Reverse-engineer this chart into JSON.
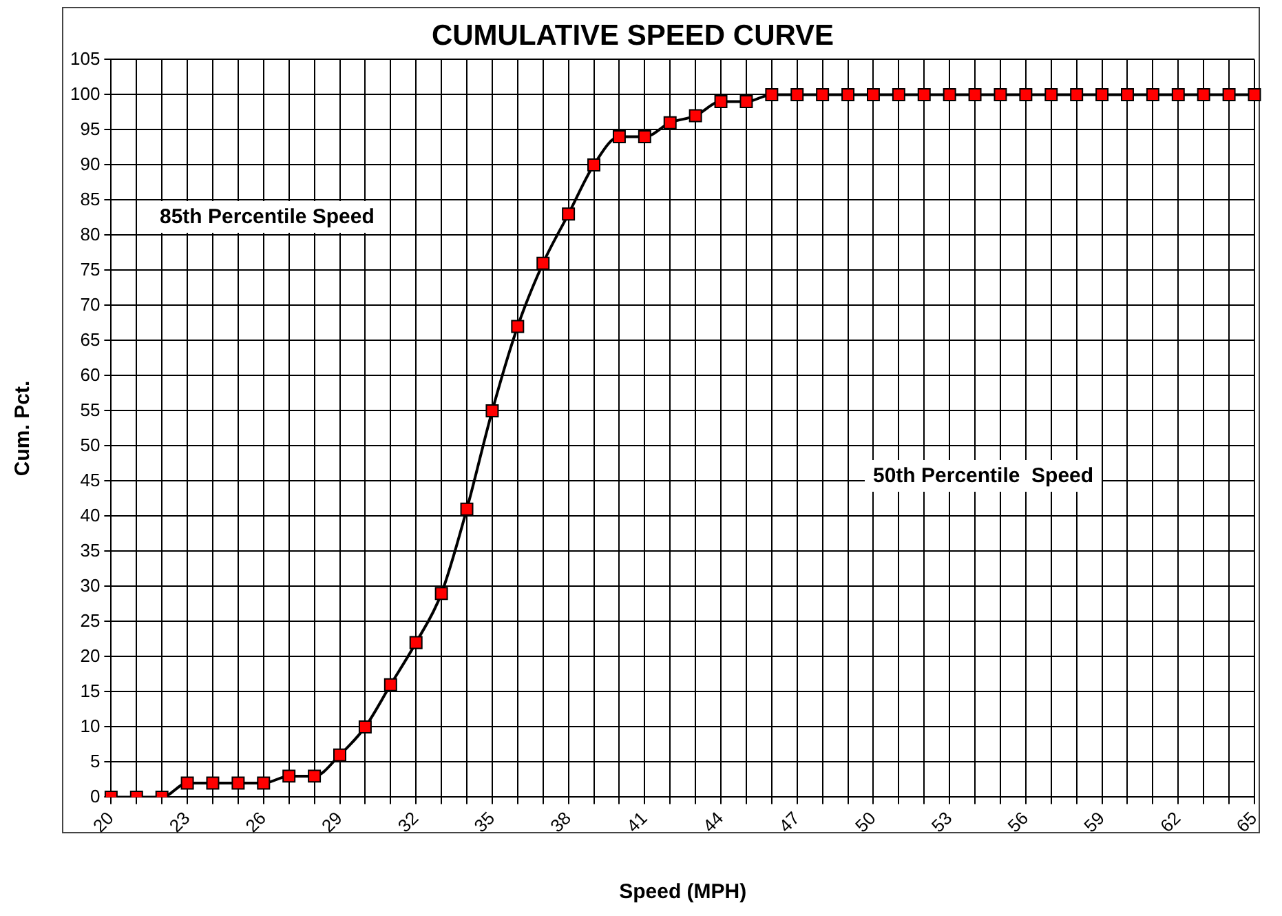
{
  "chart_data": {
    "type": "line",
    "title": "CUMULATIVE SPEED CURVE",
    "xlabel": "Speed (MPH)",
    "ylabel": "Cum. Pct.",
    "categories": [
      "20",
      null,
      null,
      "23",
      null,
      null,
      "26",
      null,
      null,
      "29",
      null,
      null,
      "32",
      null,
      null,
      "35",
      null,
      null,
      "38",
      null,
      null,
      "41",
      null,
      null,
      "44",
      null,
      null,
      "47",
      null,
      null,
      "50",
      null,
      null,
      "53",
      null,
      null,
      "56",
      null,
      null,
      "59",
      null,
      null,
      "62",
      null,
      null,
      "65"
    ],
    "series": [
      {
        "color": "#ff0000",
        "values": [
          0,
          0,
          0,
          2,
          2,
          2,
          2,
          3,
          3,
          6,
          10,
          16,
          22,
          29,
          41,
          55,
          67,
          76,
          83,
          90,
          94,
          94,
          96,
          97,
          99,
          99,
          100,
          100,
          100,
          100,
          100,
          100,
          100,
          100,
          100,
          100,
          100,
          100,
          100,
          100,
          100,
          100,
          100,
          100,
          100,
          100
        ]
      }
    ],
    "ylim": [
      0,
      105
    ],
    "yticks": [
      0,
      5,
      10,
      15,
      20,
      25,
      30,
      35,
      40,
      45,
      50,
      55,
      60,
      65,
      70,
      75,
      80,
      85,
      90,
      95,
      100,
      105
    ],
    "grid": true,
    "marker": "square",
    "line_style": "solid",
    "annotations": [
      "85th Percentile Speed",
      "50th Percentile  Speed"
    ]
  }
}
